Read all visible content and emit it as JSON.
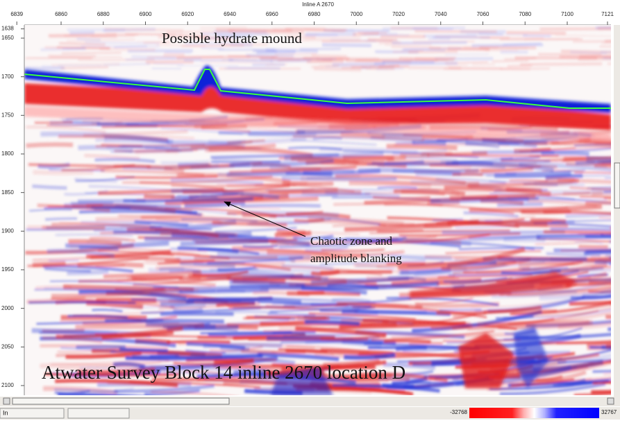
{
  "header": {
    "title": "Inline A 2670"
  },
  "x_axis": {
    "ticks": [
      6839,
      6860,
      6880,
      6900,
      6920,
      6940,
      6960,
      6980,
      7000,
      7020,
      7040,
      7060,
      7080,
      7100,
      7121
    ]
  },
  "y_axis": {
    "ticks": [
      1638,
      1650,
      1700,
      1750,
      1800,
      1850,
      1900,
      1950,
      2000,
      2050,
      2100
    ]
  },
  "annotations": {
    "mound": "Possible hydrate mound",
    "chaotic": [
      "Chaotic zone and",
      "amplitude blanking"
    ],
    "caption": "Atwater Survey Block 14 inline 2670 location D"
  },
  "status_bar": {
    "mode": "In",
    "colorbar": {
      "min": -32768,
      "max": 32767
    }
  }
}
